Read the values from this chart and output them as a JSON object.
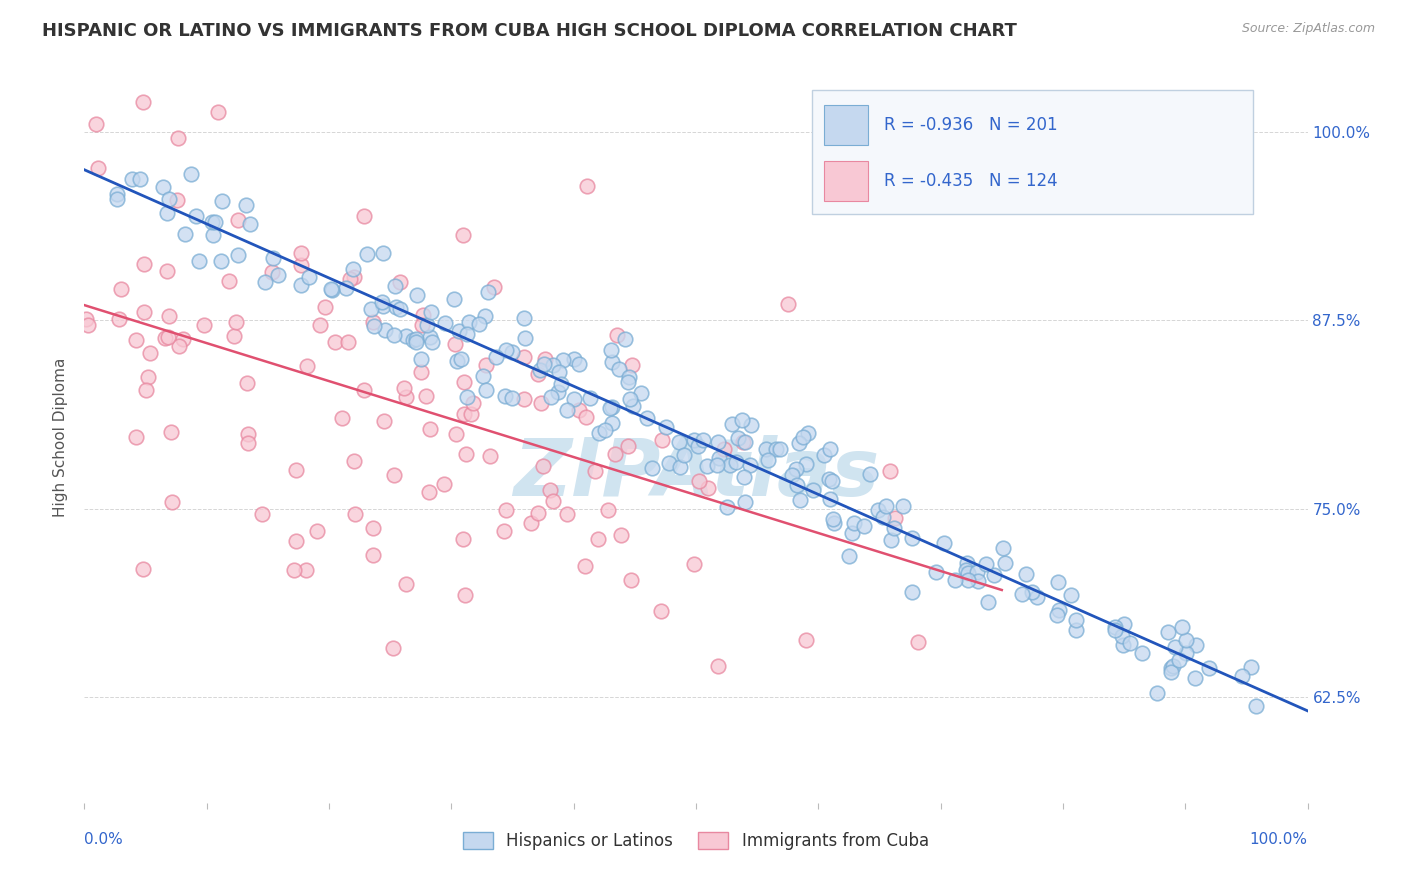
{
  "title": "HISPANIC OR LATINO VS IMMIGRANTS FROM CUBA HIGH SCHOOL DIPLOMA CORRELATION CHART",
  "source_text": "Source: ZipAtlas.com",
  "ylabel": "High School Diploma",
  "x_bottom_left": "0.0%",
  "x_bottom_right": "100.0%",
  "y_ticks": [
    0.625,
    0.75,
    0.875,
    1.0
  ],
  "y_tick_labels": [
    "62.5%",
    "75.0%",
    "87.5%",
    "100.0%"
  ],
  "xlim": [
    0.0,
    1.0
  ],
  "ylim": [
    0.555,
    1.04
  ],
  "series1_label": "Hispanics or Latinos",
  "series1_face_color": "#c5d8ef",
  "series1_edge_color": "#7aadd4",
  "series1_line_color": "#2255bb",
  "series1_R": -0.936,
  "series1_N": 201,
  "series2_label": "Immigrants from Cuba",
  "series2_face_color": "#f8c8d4",
  "series2_edge_color": "#e888a0",
  "series2_line_color": "#e05070",
  "series2_R": -0.435,
  "series2_N": 124,
  "legend_R_color": "#3366cc",
  "legend_N_color": "#3366cc",
  "background_color": "#ffffff",
  "grid_color": "#cccccc",
  "title_color": "#333333",
  "watermark_text": "ZIPAtlas",
  "watermark_color": "#d0e4f0",
  "title_fontsize": 13,
  "axis_label_fontsize": 11,
  "tick_fontsize": 11,
  "legend_fontsize": 12,
  "legend_box_bg": "#f5f8fc",
  "legend_box_edge": "#c0d0e0"
}
